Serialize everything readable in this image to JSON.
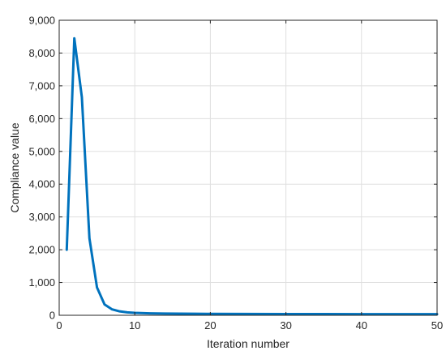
{
  "chart_data": {
    "type": "line",
    "title": "",
    "xlabel": "Iteration number",
    "ylabel": "Compliance value",
    "xlim": [
      0,
      50
    ],
    "ylim": [
      0,
      9000
    ],
    "x_ticks": [
      0,
      10,
      20,
      30,
      40,
      50
    ],
    "x_tick_labels": [
      "0",
      "10",
      "20",
      "30",
      "40",
      "50"
    ],
    "y_ticks": [
      0,
      1000,
      2000,
      3000,
      4000,
      5000,
      6000,
      7000,
      8000,
      9000
    ],
    "y_tick_labels": [
      "0",
      "1,000",
      "2,000",
      "3,000",
      "4,000",
      "5,000",
      "6,000",
      "7,000",
      "8,000",
      "9,000"
    ],
    "grid": true,
    "series": [
      {
        "color": "#0072BD",
        "x": [
          1,
          2,
          3,
          4,
          5,
          6,
          7,
          8,
          9,
          10,
          12,
          14,
          16,
          18,
          20,
          25,
          30,
          35,
          40,
          45,
          50
        ],
        "y": [
          2000,
          8450,
          6650,
          2350,
          850,
          330,
          180,
          120,
          90,
          75,
          60,
          52,
          48,
          45,
          43,
          40,
          38,
          36,
          35,
          34,
          33
        ]
      }
    ]
  }
}
